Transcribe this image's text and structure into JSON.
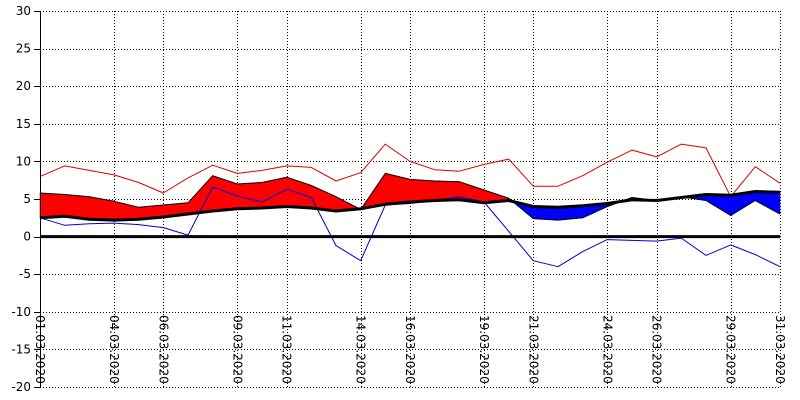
{
  "chart_data": {
    "type": "line",
    "title": "",
    "xlabel": "",
    "ylabel": "",
    "ylim": [
      -20,
      30
    ],
    "yticks": [
      30,
      25,
      20,
      15,
      10,
      5,
      0,
      -5,
      -10,
      -15,
      -20
    ],
    "xlim": [
      1,
      31
    ],
    "x_tick_days": [
      1,
      4,
      6,
      9,
      11,
      14,
      16,
      19,
      21,
      24,
      26,
      29,
      31
    ],
    "x_tick_labels": [
      "01.03.2020",
      "04.03.2020",
      "06.03.2020",
      "09.03.2020",
      "11.03.2020",
      "14.03.2020",
      "16.03.2020",
      "19.03.2020",
      "21.03.2020",
      "24.03.2020",
      "26.03.2020",
      "29.03.2020",
      "31.03.2020"
    ],
    "grid": true,
    "legend": "none",
    "zero_line": 0,
    "colors": {
      "warm_fill": "#ff0000",
      "cold_fill": "#0000ff",
      "max_line": "#dd0000",
      "min_line": "#0000cc",
      "norm_line": "#000000",
      "grid": "#000000"
    },
    "days": [
      1,
      2,
      3,
      4,
      5,
      6,
      7,
      8,
      9,
      10,
      11,
      12,
      13,
      14,
      15,
      16,
      17,
      18,
      19,
      20,
      21,
      22,
      23,
      24,
      25,
      26,
      27,
      28,
      29,
      30,
      31
    ],
    "series": [
      {
        "key": "tmax",
        "values": [
          8.0,
          9.4,
          8.8,
          8.2,
          7.2,
          5.8,
          7.8,
          9.5,
          8.4,
          8.8,
          9.4,
          9.2,
          7.4,
          8.5,
          12.3,
          10.0,
          8.9,
          8.7,
          9.6,
          10.3,
          6.7,
          6.7,
          8.1,
          9.9,
          11.5,
          10.6,
          12.3,
          11.8,
          5.3,
          9.3,
          7.1
        ]
      },
      {
        "key": "tmean",
        "values": [
          5.8,
          5.6,
          5.3,
          4.7,
          3.9,
          4.2,
          4.5,
          8.1,
          7.0,
          7.2,
          7.9,
          6.8,
          5.3,
          3.6,
          8.4,
          7.6,
          7.4,
          7.3,
          6.2,
          5.1,
          2.4,
          2.2,
          2.5,
          4.0,
          5.2,
          4.8,
          5.3,
          4.8,
          2.8,
          4.8,
          3.0
        ]
      },
      {
        "key": "tmin",
        "values": [
          2.5,
          1.5,
          1.7,
          1.8,
          1.6,
          1.2,
          0.2,
          6.6,
          5.4,
          4.6,
          6.3,
          5.2,
          -1.2,
          -3.2,
          4.2,
          4.4,
          4.8,
          5.3,
          4.6,
          0.7,
          -3.2,
          -4.0,
          -2.0,
          -0.4,
          -0.5,
          -0.6,
          -0.2,
          -2.5,
          -1.1,
          -2.4,
          -4.0
        ]
      },
      {
        "key": "tnorm",
        "values": [
          2.5,
          2.7,
          2.3,
          2.2,
          2.3,
          2.6,
          3.0,
          3.4,
          3.7,
          3.8,
          4.0,
          3.8,
          3.4,
          3.7,
          4.3,
          4.6,
          4.8,
          4.9,
          4.5,
          4.8,
          4.0,
          3.9,
          4.1,
          4.4,
          4.9,
          4.8,
          5.2,
          5.6,
          5.5,
          6.0,
          5.9
        ]
      }
    ]
  }
}
